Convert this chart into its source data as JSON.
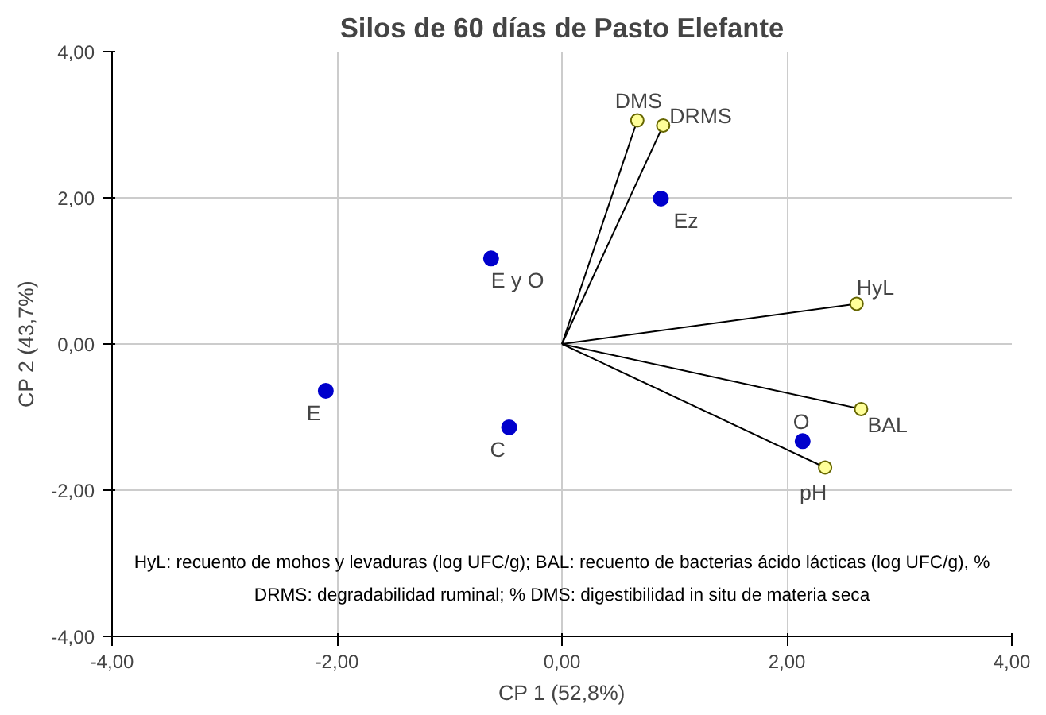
{
  "chart_data": {
    "type": "scatter",
    "title": "Silos de 60 días de Pasto Elefante",
    "xlabel": "CP 1 (52,8%)",
    "ylabel": "CP 2 (43,7%)",
    "annotations": [
      "HyL: recuento de mohos y levaduras (log UFC/g); BAL: recuento de bacterias ácido lácticas (log UFC/g), %",
      "DRMS: degradabilidad ruminal; % DMS: digestibilidad in situ de materia seca"
    ],
    "xlim": [
      -4,
      4
    ],
    "ylim": [
      -4,
      4
    ],
    "xticks": [
      {
        "value": -4,
        "label": "-4,00"
      },
      {
        "value": -2,
        "label": "-2,00"
      },
      {
        "value": 0,
        "label": "0,00"
      },
      {
        "value": 2,
        "label": "2,00"
      },
      {
        "value": 4,
        "label": "4,00"
      }
    ],
    "yticks": [
      {
        "value": -4,
        "label": "-4,00"
      },
      {
        "value": -2,
        "label": "-2,00"
      },
      {
        "value": 0,
        "label": "0,00"
      },
      {
        "value": 2,
        "label": "2,00"
      },
      {
        "value": 4,
        "label": "4,00"
      }
    ],
    "grid": true,
    "series": [
      {
        "color": "#0000cc",
        "x": [
          -2.1,
          -0.47,
          -0.63,
          0.88,
          2.14
        ],
        "values": [
          -0.64,
          -1.14,
          1.17,
          1.99,
          -1.33
        ],
        "value_labels": [
          "E",
          "C",
          "E y O",
          "Ez",
          "O"
        ]
      },
      {
        "type": "line",
        "color": "#000000",
        "x": [
          0,
          0.67
        ],
        "values": [
          0,
          3.06
        ]
      },
      {
        "type": "line",
        "color": "#000000",
        "x": [
          0,
          0.9
        ],
        "values": [
          0,
          2.99
        ]
      },
      {
        "type": "line",
        "color": "#000000",
        "x": [
          0,
          2.62
        ],
        "values": [
          0,
          0.55
        ]
      },
      {
        "type": "line",
        "color": "#000000",
        "x": [
          0,
          2.66
        ],
        "values": [
          0,
          -0.89
        ]
      },
      {
        "type": "line",
        "color": "#000000",
        "x": [
          0,
          2.34
        ],
        "values": [
          0,
          -1.69
        ]
      },
      {
        "color": "#ffff99",
        "x": [
          0.67,
          0.9,
          2.62,
          2.66,
          2.34
        ],
        "values": [
          3.06,
          2.99,
          0.55,
          -0.89,
          -1.69
        ],
        "value_labels": [
          "DMS",
          "DRMS",
          "HyL",
          "BAL",
          "pH"
        ]
      }
    ]
  }
}
